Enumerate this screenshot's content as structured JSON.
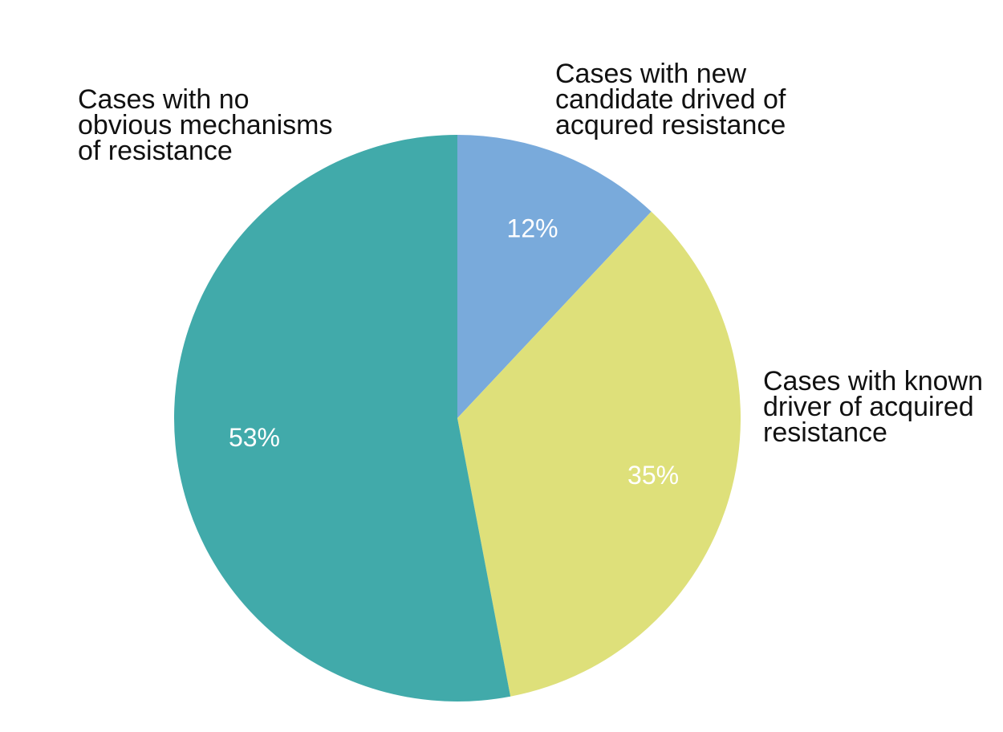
{
  "chart_data": {
    "type": "pie",
    "slices": [
      {
        "label_lines": [
          "Cases with new",
          "candidate drived of",
          "acqured resistance"
        ],
        "value": 12,
        "value_label": "12%",
        "color": "#79aadb"
      },
      {
        "label_lines": [
          "Cases with known",
          "driver of acquired",
          "resistance"
        ],
        "value": 35,
        "value_label": "35%",
        "color": "#dee07a"
      },
      {
        "label_lines": [
          "Cases with no",
          "obvious mechanisms",
          "of resistance"
        ],
        "value": 53,
        "value_label": "53%",
        "color": "#41aaaa"
      }
    ],
    "start_angle": "top",
    "direction": "clockwise"
  }
}
